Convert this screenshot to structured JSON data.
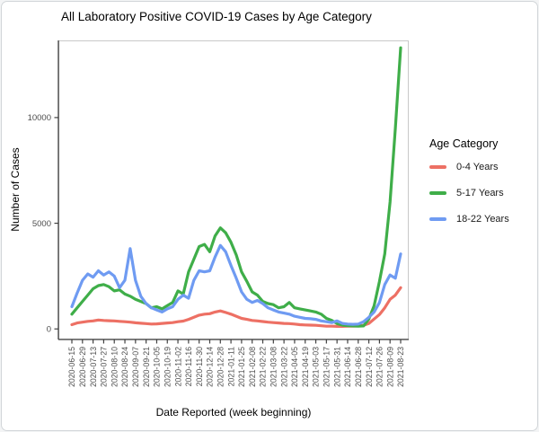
{
  "chart_data": {
    "type": "line",
    "title": "All Laboratory Positive COVID-19 Cases by Age Category",
    "xlabel": "Date Reported (week beginning)",
    "ylabel": "Number of Cases",
    "legend": {
      "title": "Age Category",
      "position": "right"
    },
    "grid": false,
    "y_ticks": [
      0,
      5000,
      10000
    ],
    "ylim": [
      -500,
      13650
    ],
    "x_tick_step": 2,
    "x": [
      "2020-06-15",
      "2020-06-22",
      "2020-06-29",
      "2020-07-06",
      "2020-07-13",
      "2020-07-20",
      "2020-07-27",
      "2020-08-03",
      "2020-08-10",
      "2020-08-17",
      "2020-08-24",
      "2020-08-31",
      "2020-09-07",
      "2020-09-14",
      "2020-09-21",
      "2020-09-28",
      "2020-10-05",
      "2020-10-12",
      "2020-10-19",
      "2020-10-26",
      "2020-11-02",
      "2020-11-09",
      "2020-11-16",
      "2020-11-23",
      "2020-11-30",
      "2020-12-07",
      "2020-12-14",
      "2020-12-21",
      "2020-12-28",
      "2021-01-04",
      "2021-01-11",
      "2021-01-18",
      "2021-01-25",
      "2021-02-01",
      "2021-02-08",
      "2021-02-15",
      "2021-02-22",
      "2021-03-01",
      "2021-03-08",
      "2021-03-15",
      "2021-03-22",
      "2021-03-29",
      "2021-04-05",
      "2021-04-12",
      "2021-04-19",
      "2021-04-26",
      "2021-05-03",
      "2021-05-10",
      "2021-05-17",
      "2021-05-24",
      "2021-05-31",
      "2021-06-07",
      "2021-06-14",
      "2021-06-21",
      "2021-06-28",
      "2021-07-05",
      "2021-07-12",
      "2021-07-19",
      "2021-07-26",
      "2021-08-02",
      "2021-08-09",
      "2021-08-16",
      "2021-08-23"
    ],
    "series": [
      {
        "name": "0-4 Years",
        "color": "#ED7064",
        "values": [
          200,
          280,
          320,
          360,
          380,
          420,
          400,
          390,
          380,
          360,
          340,
          320,
          290,
          270,
          250,
          230,
          240,
          260,
          280,
          300,
          340,
          370,
          450,
          550,
          650,
          700,
          720,
          800,
          850,
          780,
          700,
          600,
          500,
          450,
          400,
          380,
          350,
          320,
          300,
          280,
          260,
          250,
          230,
          200,
          190,
          180,
          170,
          150,
          130,
          130,
          120,
          120,
          130,
          130,
          140,
          170,
          260,
          470,
          680,
          1000,
          1400,
          1600,
          1950
        ]
      },
      {
        "name": "5-17 Years",
        "color": "#3FAE49",
        "values": [
          700,
          1000,
          1300,
          1600,
          1900,
          2050,
          2100,
          2000,
          1800,
          1850,
          1650,
          1550,
          1400,
          1300,
          1200,
          1000,
          1050,
          950,
          1100,
          1250,
          1800,
          1650,
          2700,
          3300,
          3900,
          4000,
          3650,
          4400,
          4780,
          4550,
          4100,
          3500,
          2700,
          2250,
          1750,
          1600,
          1300,
          1200,
          1150,
          1000,
          1050,
          1250,
          1000,
          950,
          900,
          850,
          800,
          700,
          500,
          400,
          250,
          180,
          150,
          140,
          130,
          140,
          470,
          1100,
          2250,
          3550,
          6000,
          9500,
          13300
        ]
      },
      {
        "name": "18-22 Years",
        "color": "#6F9BF2",
        "values": [
          1050,
          1700,
          2300,
          2600,
          2450,
          2750,
          2550,
          2700,
          2500,
          1950,
          2300,
          3800,
          2300,
          1550,
          1200,
          1000,
          900,
          800,
          950,
          1050,
          1400,
          1600,
          1450,
          2300,
          2750,
          2700,
          2750,
          3400,
          3950,
          3650,
          3000,
          2400,
          1750,
          1400,
          1250,
          1350,
          1200,
          1000,
          900,
          800,
          750,
          700,
          600,
          550,
          500,
          480,
          450,
          380,
          340,
          300,
          380,
          260,
          230,
          220,
          230,
          340,
          550,
          800,
          1250,
          2100,
          2550,
          2400,
          3550
        ]
      }
    ]
  },
  "colors": {
    "axis_text": "#4d4d4d",
    "axis_line": "#404040",
    "panel_border": "#c9c9c9",
    "background": "#ffffff"
  }
}
